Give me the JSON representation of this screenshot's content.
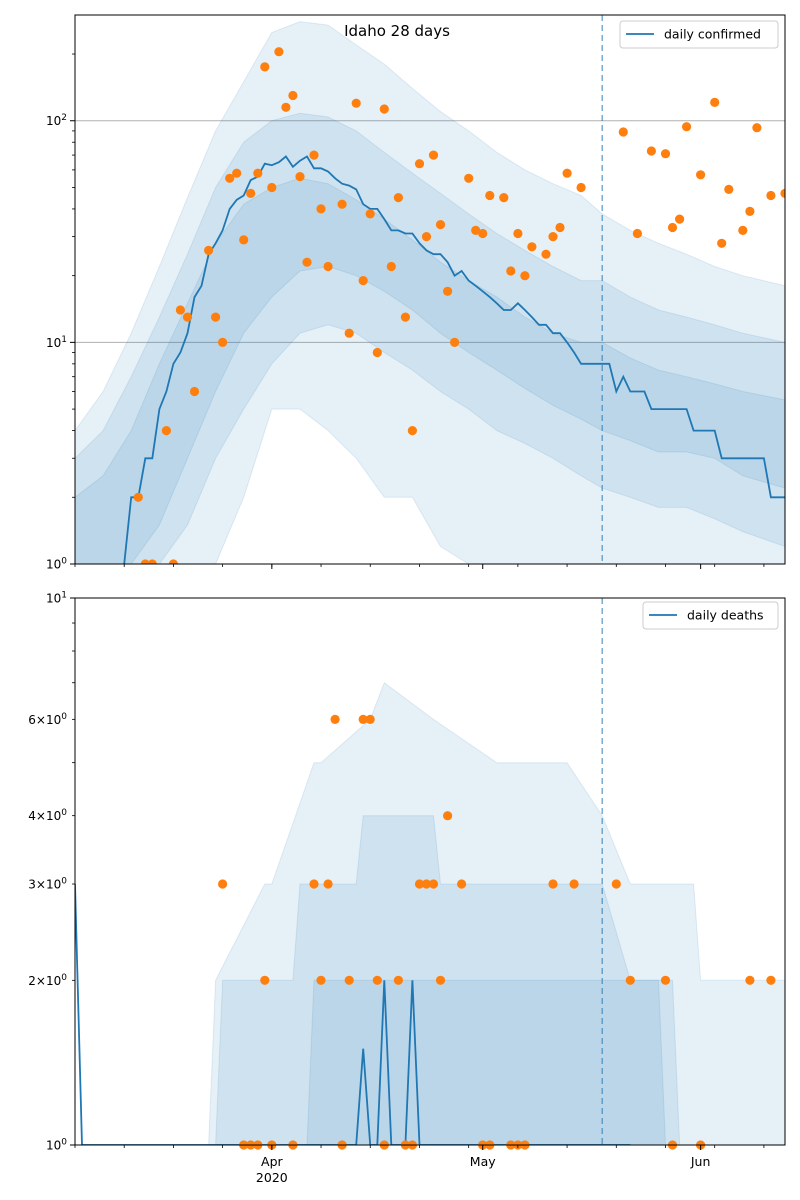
{
  "figure": {
    "title": "Idaho 28 days"
  },
  "colors": {
    "line": "#1f77b4",
    "band": "#1f77b4",
    "points": "#ff7f0e",
    "grid": "#b0b0b0",
    "forecast_line": "#1f77b4"
  },
  "chart_data": [
    {
      "type": "line",
      "title": "Idaho 28 days",
      "yscale": "log",
      "ylim": [
        1,
        300
      ],
      "y_ticks": [
        1,
        10,
        100
      ],
      "y_tick_labels": [
        "10^0",
        "10^1",
        "10^2"
      ],
      "grid": "major-y",
      "legend": "top-right",
      "x_range": [
        "2020-03-04",
        "2020-06-13"
      ],
      "x_ticks": [
        "2020-04-01",
        "2020-05-01",
        "2020-06-01"
      ],
      "x_tick_labels": [
        "Apr",
        "May",
        "Jun"
      ],
      "x_tick_year": "2020",
      "forecast_start": "2020-05-18",
      "series": [
        {
          "name": "daily confirmed",
          "kind": "line",
          "x": [
            "2020-03-11",
            "2020-03-12",
            "2020-03-13",
            "2020-03-14",
            "2020-03-15",
            "2020-03-16",
            "2020-03-17",
            "2020-03-18",
            "2020-03-19",
            "2020-03-20",
            "2020-03-21",
            "2020-03-22",
            "2020-03-23",
            "2020-03-24",
            "2020-03-25",
            "2020-03-26",
            "2020-03-27",
            "2020-03-28",
            "2020-03-29",
            "2020-03-30",
            "2020-03-31",
            "2020-04-01",
            "2020-04-02",
            "2020-04-03",
            "2020-04-04",
            "2020-04-05",
            "2020-04-06",
            "2020-04-07",
            "2020-04-08",
            "2020-04-09",
            "2020-04-10",
            "2020-04-11",
            "2020-04-12",
            "2020-04-13",
            "2020-04-14",
            "2020-04-15",
            "2020-04-16",
            "2020-04-17",
            "2020-04-18",
            "2020-04-19",
            "2020-04-20",
            "2020-04-21",
            "2020-04-22",
            "2020-04-23",
            "2020-04-24",
            "2020-04-25",
            "2020-04-26",
            "2020-04-27",
            "2020-04-28",
            "2020-04-29",
            "2020-04-30",
            "2020-05-01",
            "2020-05-02",
            "2020-05-03",
            "2020-05-04",
            "2020-05-05",
            "2020-05-06",
            "2020-05-07",
            "2020-05-08",
            "2020-05-09",
            "2020-05-10",
            "2020-05-11",
            "2020-05-12",
            "2020-05-13",
            "2020-05-14",
            "2020-05-15",
            "2020-05-16",
            "2020-05-17",
            "2020-05-18",
            "2020-05-19",
            "2020-05-20",
            "2020-05-21",
            "2020-05-22",
            "2020-05-23",
            "2020-05-24",
            "2020-05-25",
            "2020-05-26",
            "2020-05-27",
            "2020-05-28",
            "2020-05-29",
            "2020-05-30",
            "2020-05-31",
            "2020-06-01",
            "2020-06-02",
            "2020-06-03",
            "2020-06-04",
            "2020-06-05",
            "2020-06-06",
            "2020-06-07",
            "2020-06-08",
            "2020-06-09",
            "2020-06-10",
            "2020-06-11",
            "2020-06-12",
            "2020-06-13"
          ],
          "values": [
            1,
            2,
            2,
            3,
            3,
            5,
            6,
            8,
            9,
            11,
            16,
            18,
            25,
            28,
            32,
            40,
            44,
            46,
            54,
            56,
            64,
            63,
            65,
            69,
            62,
            66,
            69,
            61,
            61,
            59,
            55,
            52,
            51,
            49,
            42,
            40,
            40,
            36,
            32,
            32,
            31,
            31,
            28,
            26,
            25,
            25,
            23,
            20,
            21,
            19,
            18,
            17,
            16,
            15,
            14,
            14,
            15,
            14,
            13,
            12,
            12,
            11,
            11,
            10,
            9,
            8,
            8,
            8,
            8,
            8,
            6,
            7,
            6,
            6,
            6,
            5,
            5,
            5,
            5,
            5,
            5,
            4,
            4,
            4,
            4,
            3,
            3,
            3,
            3,
            3,
            3,
            3,
            2,
            2,
            2
          ]
        },
        {
          "name": "",
          "kind": "band",
          "x": [
            "2020-03-04",
            "2020-03-08",
            "2020-03-12",
            "2020-03-16",
            "2020-03-20",
            "2020-03-24",
            "2020-03-28",
            "2020-04-01",
            "2020-04-05",
            "2020-04-09",
            "2020-04-13",
            "2020-04-17",
            "2020-04-21",
            "2020-04-25",
            "2020-04-29",
            "2020-05-03",
            "2020-05-07",
            "2020-05-11",
            "2020-05-15",
            "2020-05-18",
            "2020-05-22",
            "2020-05-26",
            "2020-05-30",
            "2020-06-03",
            "2020-06-07",
            "2020-06-13"
          ],
          "lower": [
            1,
            1,
            1,
            1.5,
            3,
            6,
            11,
            16,
            21,
            22,
            20,
            17,
            14,
            11,
            9,
            7.5,
            6.2,
            5.2,
            4.5,
            4,
            3.6,
            3.2,
            3.2,
            3,
            2.5,
            2.2
          ],
          "upper": [
            2,
            2.5,
            4,
            8,
            15,
            28,
            42,
            50,
            55,
            52,
            44,
            36,
            29,
            23,
            19,
            16,
            13,
            11,
            10,
            10,
            8.5,
            7.5,
            7,
            6.5,
            6,
            5.5
          ]
        },
        {
          "name": "",
          "kind": "band",
          "x": [
            "2020-03-04",
            "2020-03-08",
            "2020-03-12",
            "2020-03-16",
            "2020-03-20",
            "2020-03-24",
            "2020-03-28",
            "2020-04-01",
            "2020-04-05",
            "2020-04-09",
            "2020-04-13",
            "2020-04-17",
            "2020-04-21",
            "2020-04-25",
            "2020-04-29",
            "2020-05-03",
            "2020-05-07",
            "2020-05-11",
            "2020-05-15",
            "2020-05-18",
            "2020-05-22",
            "2020-05-26",
            "2020-05-30",
            "2020-06-03",
            "2020-06-07",
            "2020-06-13"
          ],
          "lower": [
            1,
            1,
            1,
            1,
            1.5,
            3,
            5,
            8,
            11,
            12,
            11,
            9,
            7.5,
            6,
            5,
            4,
            3.5,
            3,
            2.5,
            2.2,
            2,
            1.8,
            1.8,
            1.6,
            1.4,
            1.2
          ],
          "upper": [
            3,
            4,
            7,
            13,
            25,
            50,
            80,
            100,
            108,
            104,
            90,
            72,
            58,
            47,
            38,
            31,
            26,
            22,
            19,
            19,
            16,
            14,
            13,
            12,
            11,
            10
          ]
        },
        {
          "name": "",
          "kind": "band",
          "x": [
            "2020-03-04",
            "2020-03-08",
            "2020-03-12",
            "2020-03-16",
            "2020-03-20",
            "2020-03-24",
            "2020-03-28",
            "2020-04-01",
            "2020-04-05",
            "2020-04-09",
            "2020-04-13",
            "2020-04-17",
            "2020-04-21",
            "2020-04-25",
            "2020-04-29",
            "2020-05-03",
            "2020-05-07",
            "2020-05-11",
            "2020-05-15",
            "2020-05-18",
            "2020-05-22",
            "2020-05-26",
            "2020-05-30",
            "2020-06-03",
            "2020-06-07",
            "2020-06-13"
          ],
          "lower": [
            1,
            1,
            1,
            1,
            1,
            1,
            2,
            5,
            5,
            4,
            3,
            2,
            2,
            1.2,
            1,
            1,
            1,
            1,
            1,
            1,
            1,
            1,
            1,
            1,
            1,
            1
          ],
          "upper": [
            4,
            6,
            11,
            22,
            45,
            90,
            150,
            250,
            280,
            270,
            220,
            180,
            140,
            110,
            90,
            72,
            60,
            52,
            46,
            38,
            32,
            28,
            25,
            22,
            20,
            18
          ]
        },
        {
          "name": "",
          "kind": "points",
          "x": [
            "2020-03-13",
            "2020-03-14",
            "2020-03-15",
            "2020-03-17",
            "2020-03-18",
            "2020-03-19",
            "2020-03-20",
            "2020-03-21",
            "2020-03-23",
            "2020-03-24",
            "2020-03-25",
            "2020-03-26",
            "2020-03-27",
            "2020-03-28",
            "2020-03-29",
            "2020-03-30",
            "2020-03-31",
            "2020-04-01",
            "2020-04-02",
            "2020-04-03",
            "2020-04-04",
            "2020-04-05",
            "2020-04-06",
            "2020-04-07",
            "2020-04-08",
            "2020-04-09",
            "2020-04-11",
            "2020-04-12",
            "2020-04-13",
            "2020-04-14",
            "2020-04-15",
            "2020-04-16",
            "2020-04-17",
            "2020-04-18",
            "2020-04-19",
            "2020-04-20",
            "2020-04-21",
            "2020-04-22",
            "2020-04-23",
            "2020-04-24",
            "2020-04-25",
            "2020-04-26",
            "2020-04-27",
            "2020-04-29",
            "2020-04-30",
            "2020-05-01",
            "2020-05-02",
            "2020-05-04",
            "2020-05-05",
            "2020-05-06",
            "2020-05-07",
            "2020-05-08",
            "2020-05-10",
            "2020-05-11",
            "2020-05-12",
            "2020-05-13",
            "2020-05-15",
            "2020-05-21",
            "2020-05-23",
            "2020-05-25",
            "2020-05-27",
            "2020-05-28",
            "2020-05-29",
            "2020-05-30",
            "2020-06-01",
            "2020-06-03",
            "2020-06-04",
            "2020-06-05",
            "2020-06-07",
            "2020-06-08",
            "2020-06-09",
            "2020-06-11",
            "2020-06-13"
          ],
          "values": [
            2,
            1,
            1,
            4,
            1,
            14,
            13,
            6,
            26,
            13,
            10,
            55,
            58,
            29,
            47,
            58,
            175,
            50,
            205,
            115,
            130,
            56,
            23,
            70,
            40,
            22,
            42,
            11,
            120,
            19,
            38,
            9,
            113,
            22,
            45,
            13,
            4,
            64,
            30,
            70,
            34,
            17,
            10,
            55,
            32,
            31,
            46,
            45,
            21,
            31,
            20,
            27,
            25,
            30,
            33,
            58,
            50,
            89,
            31,
            73,
            71,
            33,
            36,
            94,
            57,
            121,
            28,
            49,
            32,
            39,
            93,
            46,
            47
          ]
        }
      ]
    },
    {
      "type": "line",
      "title": "",
      "yscale": "log",
      "ylim": [
        1,
        10
      ],
      "y_ticks": [
        1,
        10
      ],
      "y_tick_labels": [
        "10^0",
        "10^1"
      ],
      "y_minor_ticks": [
        2,
        3,
        4,
        6
      ],
      "y_minor_tick_labels": [
        "2 × 10^0",
        "3 × 10^0",
        "4 × 10^0",
        "6 × 10^0"
      ],
      "grid": "none",
      "legend": "top-right",
      "x_range": [
        "2020-03-04",
        "2020-06-13"
      ],
      "x_ticks": [
        "2020-04-01",
        "2020-05-01",
        "2020-06-01"
      ],
      "x_tick_labels": [
        "Apr",
        "May",
        "Jun"
      ],
      "x_tick_year": "2020",
      "forecast_start": "2020-05-18",
      "series": [
        {
          "name": "daily deaths",
          "kind": "line",
          "x": [
            "2020-03-04",
            "2020-03-05",
            "2020-04-13",
            "2020-04-14",
            "2020-04-15",
            "2020-04-16",
            "2020-04-17",
            "2020-04-18",
            "2020-04-19",
            "2020-04-20",
            "2020-04-21",
            "2020-04-22",
            "2020-05-18",
            "2020-05-22"
          ],
          "values": [
            3,
            1,
            1,
            1.5,
            1,
            1,
            2,
            1,
            1,
            1,
            2,
            1,
            1,
            1
          ]
        },
        {
          "name": "",
          "kind": "band",
          "x": [
            "2020-03-04",
            "2020-03-28",
            "2020-03-29",
            "2020-04-06",
            "2020-04-07",
            "2020-04-17",
            "2020-04-18",
            "2020-05-01",
            "2020-05-02",
            "2020-05-12",
            "2020-05-13",
            "2020-05-18",
            "2020-05-22",
            "2020-05-26",
            "2020-05-27",
            "2020-06-13"
          ],
          "lower": [
            1,
            1,
            1,
            1,
            1,
            1,
            1,
            1,
            1,
            1,
            1,
            1,
            1,
            1,
            1,
            1
          ],
          "upper": [
            1,
            1,
            1,
            1,
            2,
            2,
            2,
            2,
            2,
            2,
            2,
            2,
            2,
            2,
            1,
            1
          ]
        },
        {
          "name": "",
          "kind": "band",
          "x": [
            "2020-03-04",
            "2020-03-24",
            "2020-03-25",
            "2020-04-04",
            "2020-04-05",
            "2020-04-13",
            "2020-04-14",
            "2020-04-24",
            "2020-04-25",
            "2020-05-12",
            "2020-05-13",
            "2020-05-18",
            "2020-05-22",
            "2020-05-28",
            "2020-05-29",
            "2020-06-13"
          ],
          "lower": [
            1,
            1,
            1,
            1,
            1,
            1,
            1,
            1,
            1,
            1,
            1,
            1,
            1,
            1,
            1,
            1
          ],
          "upper": [
            1,
            1,
            2,
            2,
            3,
            3,
            4,
            4,
            3,
            3,
            3,
            3,
            2,
            2,
            1,
            1
          ]
        },
        {
          "name": "",
          "kind": "band",
          "x": [
            "2020-03-04",
            "2020-03-23",
            "2020-03-24",
            "2020-03-31",
            "2020-04-01",
            "2020-04-07",
            "2020-04-08",
            "2020-04-15",
            "2020-04-17",
            "2020-04-24",
            "2020-05-03",
            "2020-05-13",
            "2020-05-18",
            "2020-05-22",
            "2020-05-31",
            "2020-06-01",
            "2020-06-13"
          ],
          "lower": [
            1,
            1,
            1,
            1,
            1,
            1,
            1,
            1,
            1,
            1,
            1,
            1,
            1,
            1,
            1,
            1,
            1
          ],
          "upper": [
            1,
            1,
            2,
            3,
            3,
            5,
            5,
            6,
            7,
            6,
            5,
            5,
            4,
            3,
            3,
            2,
            2
          ]
        },
        {
          "name": "",
          "kind": "points",
          "x": [
            "2020-03-25",
            "2020-03-28",
            "2020-03-29",
            "2020-03-30",
            "2020-03-31",
            "2020-04-01",
            "2020-04-04",
            "2020-04-07",
            "2020-04-08",
            "2020-04-09",
            "2020-04-10",
            "2020-04-11",
            "2020-04-12",
            "2020-04-14",
            "2020-04-15",
            "2020-04-16",
            "2020-04-17",
            "2020-04-19",
            "2020-04-20",
            "2020-04-21",
            "2020-04-22",
            "2020-04-23",
            "2020-04-24",
            "2020-04-25",
            "2020-04-26",
            "2020-04-28",
            "2020-05-01",
            "2020-05-02",
            "2020-05-05",
            "2020-05-06",
            "2020-05-07",
            "2020-05-11",
            "2020-05-14",
            "2020-05-20",
            "2020-05-22",
            "2020-05-27",
            "2020-05-28",
            "2020-06-01",
            "2020-06-08",
            "2020-06-11"
          ],
          "values": [
            3,
            1,
            1,
            1,
            2,
            1,
            1,
            3,
            2,
            3,
            6,
            1,
            2,
            6,
            6,
            2,
            1,
            2,
            1,
            1,
            3,
            3,
            3,
            2,
            4,
            3,
            1,
            1,
            1,
            1,
            1,
            3,
            3,
            3,
            2,
            2,
            1,
            1,
            2,
            2
          ]
        }
      ]
    }
  ]
}
